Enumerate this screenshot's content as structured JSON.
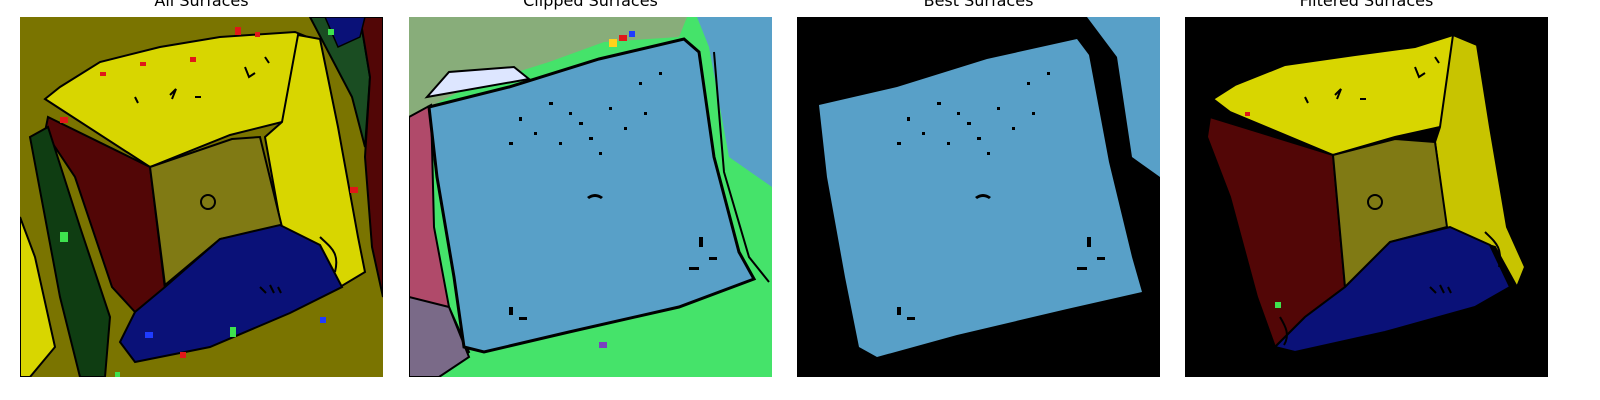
{
  "figure": {
    "panels": [
      {
        "title": "All Surfaces"
      },
      {
        "title": "Clipped Surfaces"
      },
      {
        "title": "Best Surfaces"
      },
      {
        "title": "Filtered Surfaces"
      }
    ]
  },
  "colors": {
    "olive_background": "#7a7400",
    "yellow_surface": "#d8d600",
    "maroon_surface": "#520606",
    "navy_surface": "#0a1178",
    "dark_olive_surface": "#807a14",
    "sage_surface": "#88ad7a",
    "sky_blue_surface": "#58a0c8",
    "bright_green_surface": "#45e36a",
    "raspberry_surface": "#b04a6a",
    "mauve_surface": "#7a6a88",
    "black": "#000000"
  }
}
